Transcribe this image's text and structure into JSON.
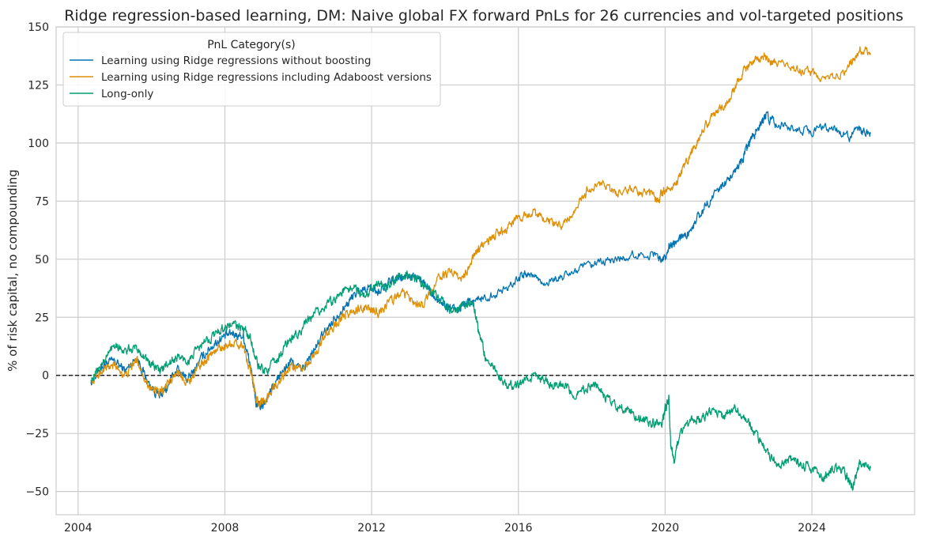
{
  "chart_data": {
    "type": "line",
    "title": "Ridge regression-based learning, DM: Naive global FX forward PnLs for 26 currencies and vol-targeted positions",
    "xlabel": "",
    "ylabel": "% of risk capital, no compounding",
    "xlim": [
      2003.4,
      2026.8
    ],
    "ylim": [
      -60,
      150
    ],
    "xticks": [
      2004,
      2008,
      2012,
      2016,
      2020,
      2024
    ],
    "xtick_labels": [
      "2004",
      "2008",
      "2012",
      "2016",
      "2020",
      "2024"
    ],
    "yticks": [
      -50,
      -25,
      0,
      25,
      50,
      75,
      100,
      125,
      150
    ],
    "ytick_labels": [
      "−50",
      "−25",
      "0",
      "25",
      "50",
      "75",
      "100",
      "125",
      "150"
    ],
    "grid": true,
    "reference_line": {
      "y": 0,
      "style": "dashed",
      "color": "#000000"
    },
    "legend": {
      "title": "PnL Category(s)",
      "position": "top-left"
    },
    "series": [
      {
        "name": "Learning using Ridge regressions without boosting",
        "color": "#0173b2",
        "x": [
          2004.35,
          2004.7,
          2005.0,
          2005.3,
          2005.6,
          2005.9,
          2006.2,
          2006.4,
          2006.7,
          2007.0,
          2007.3,
          2007.6,
          2007.9,
          2008.2,
          2008.5,
          2008.7,
          2008.85,
          2009.0,
          2009.2,
          2009.5,
          2009.8,
          2010.1,
          2010.4,
          2010.7,
          2011.0,
          2011.3,
          2011.6,
          2011.9,
          2012.2,
          2012.5,
          2012.8,
          2013.1,
          2013.4,
          2013.7,
          2014.0,
          2014.3,
          2014.6,
          2015.0,
          2015.5,
          2016.0,
          2016.3,
          2016.7,
          2017.2,
          2017.7,
          2018.2,
          2018.7,
          2019.2,
          2019.7,
          2020.0,
          2020.15,
          2020.3,
          2020.6,
          2020.9,
          2021.2,
          2021.5,
          2021.8,
          2022.1,
          2022.3,
          2022.5,
          2022.75,
          2023.0,
          2023.5,
          2024.0,
          2024.5,
          2025.0,
          2025.3,
          2025.6
        ],
        "y": [
          -3,
          5,
          6,
          2,
          8,
          -3,
          -9,
          -6,
          3,
          -2,
          6,
          12,
          16,
          18,
          17,
          4,
          -12,
          -14,
          -8,
          0,
          6,
          2,
          10,
          18,
          25,
          30,
          36,
          38,
          36,
          40,
          42,
          43,
          40,
          35,
          30,
          28,
          32,
          33,
          36,
          42,
          44,
          40,
          42,
          46,
          48,
          50,
          52,
          52,
          50,
          57,
          58,
          60,
          68,
          75,
          80,
          86,
          92,
          100,
          106,
          112,
          108,
          107,
          105,
          107,
          103,
          105,
          104
        ]
      },
      {
        "name": "Learning using Ridge regressions including Adaboost versions",
        "color": "#de8f05",
        "x": [
          2004.35,
          2004.7,
          2005.0,
          2005.3,
          2005.6,
          2005.9,
          2006.2,
          2006.4,
          2006.7,
          2007.0,
          2007.3,
          2007.6,
          2007.9,
          2008.2,
          2008.5,
          2008.7,
          2008.85,
          2009.0,
          2009.2,
          2009.5,
          2009.8,
          2010.1,
          2010.4,
          2010.7,
          2011.0,
          2011.3,
          2011.6,
          2011.9,
          2012.2,
          2012.5,
          2012.8,
          2013.1,
          2013.4,
          2013.8,
          2014.1,
          2014.5,
          2014.8,
          2015.0,
          2015.3,
          2015.6,
          2016.0,
          2016.4,
          2016.8,
          2017.2,
          2017.6,
          2017.9,
          2018.3,
          2018.7,
          2019.1,
          2019.5,
          2019.8,
          2020.0,
          2020.3,
          2020.6,
          2020.9,
          2021.2,
          2021.5,
          2021.8,
          2022.1,
          2022.4,
          2022.7,
          2023.0,
          2023.5,
          2024.0,
          2024.5,
          2025.0,
          2025.3,
          2025.6
        ],
        "y": [
          -3,
          3,
          4,
          0,
          7,
          -4,
          -8,
          -5,
          2,
          -3,
          4,
          9,
          12,
          14,
          13,
          2,
          -10,
          -12,
          -8,
          -2,
          4,
          2,
          8,
          16,
          22,
          26,
          28,
          29,
          27,
          32,
          35,
          33,
          30,
          42,
          44,
          42,
          52,
          56,
          60,
          62,
          68,
          70,
          66,
          64,
          72,
          80,
          82,
          78,
          80,
          78,
          75,
          80,
          82,
          92,
          102,
          110,
          115,
          120,
          130,
          135,
          137,
          134,
          132,
          130,
          128,
          132,
          140,
          138
        ]
      },
      {
        "name": "Long-only",
        "color": "#029e73",
        "x": [
          2004.35,
          2004.7,
          2005.0,
          2005.3,
          2005.6,
          2005.9,
          2006.2,
          2006.4,
          2006.7,
          2007.0,
          2007.3,
          2007.6,
          2007.9,
          2008.2,
          2008.5,
          2008.7,
          2008.9,
          2009.1,
          2009.4,
          2009.7,
          2010.0,
          2010.3,
          2010.6,
          2010.9,
          2011.2,
          2011.5,
          2011.8,
          2012.1,
          2012.4,
          2012.7,
          2013.0,
          2013.3,
          2013.6,
          2013.9,
          2014.2,
          2014.5,
          2014.75,
          2014.9,
          2015.1,
          2015.4,
          2015.7,
          2016.0,
          2016.3,
          2016.6,
          2016.9,
          2017.2,
          2017.5,
          2017.8,
          2018.1,
          2018.4,
          2018.7,
          2019.0,
          2019.3,
          2019.6,
          2019.9,
          2020.0,
          2020.1,
          2020.15,
          2020.25,
          2020.4,
          2020.7,
          2021.0,
          2021.3,
          2021.6,
          2021.9,
          2022.2,
          2022.5,
          2022.8,
          2023.1,
          2023.4,
          2023.7,
          2024.0,
          2024.3,
          2024.6,
          2024.9,
          2025.1,
          2025.3,
          2025.6
        ],
        "y": [
          -2,
          6,
          14,
          10,
          12,
          6,
          2,
          4,
          8,
          6,
          12,
          16,
          20,
          22,
          20,
          16,
          4,
          2,
          6,
          14,
          18,
          24,
          28,
          32,
          36,
          38,
          34,
          40,
          38,
          42,
          44,
          40,
          36,
          32,
          28,
          30,
          32,
          20,
          8,
          2,
          -4,
          -5,
          0,
          -2,
          -4,
          -3,
          -8,
          -6,
          -4,
          -10,
          -14,
          -15,
          -18,
          -20,
          -22,
          -14,
          -10,
          -30,
          -36,
          -26,
          -20,
          -18,
          -16,
          -18,
          -14,
          -18,
          -26,
          -34,
          -38,
          -36,
          -38,
          -40,
          -44,
          -40,
          -42,
          -48,
          -38,
          -40
        ]
      }
    ]
  }
}
